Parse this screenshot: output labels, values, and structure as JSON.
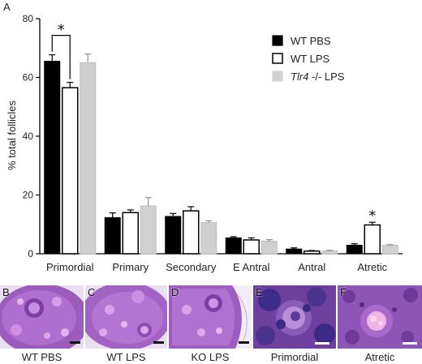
{
  "panel_a_letter": "A",
  "chart_data": {
    "type": "bar",
    "title": "",
    "xlabel": "",
    "ylabel": "% total follicles",
    "ylim": [
      0,
      80
    ],
    "yticks": [
      0,
      20,
      40,
      60,
      80
    ],
    "categories": [
      "Primordial",
      "Primary",
      "Secondary",
      "E Antral",
      "Antral",
      "Atretic"
    ],
    "series": [
      {
        "name": "WT PBS",
        "color": "#000000",
        "values": [
          65.5,
          12.3,
          12.7,
          5.4,
          1.6,
          2.9
        ],
        "errors": [
          2.2,
          1.6,
          1.0,
          0.4,
          0.4,
          0.5
        ]
      },
      {
        "name": "WT LPS",
        "color": "#ffffff",
        "values": [
          56.5,
          14.0,
          14.6,
          4.7,
          0.9,
          9.8
        ],
        "errors": [
          1.8,
          0.9,
          1.4,
          0.7,
          0.2,
          0.9
        ]
      },
      {
        "name": "Tlr4 -/- LPS",
        "color": "#d0d0d0",
        "values": [
          65.0,
          16.3,
          10.6,
          4.3,
          1.0,
          2.9
        ],
        "errors": [
          3.0,
          2.8,
          0.6,
          0.5,
          0.2,
          0.2
        ]
      }
    ],
    "legend_position": "top-right",
    "grid": false,
    "significance": [
      {
        "category": "Primordial",
        "between": [
          "WT PBS",
          "WT LPS"
        ],
        "label": "*"
      },
      {
        "category": "Atretic",
        "series": "WT LPS",
        "label": "*"
      }
    ]
  },
  "legend": {
    "wt_pbs": "WT PBS",
    "wt_lps": "WT LPS",
    "tlr4_italic": "Tlr4",
    "tlr4_rest": " -/- LPS"
  },
  "micrographs": [
    {
      "letter": "B",
      "caption": "WT PBS",
      "icon": "ovary-section-image"
    },
    {
      "letter": "C",
      "caption": "WT LPS",
      "icon": "ovary-section-image"
    },
    {
      "letter": "D",
      "caption": "KO LPS",
      "icon": "ovary-section-image"
    },
    {
      "letter": "E",
      "caption": "Primordial",
      "icon": "primordial-follicle-image"
    },
    {
      "letter": "F",
      "caption": "Atretic",
      "icon": "atretic-follicle-image"
    }
  ]
}
